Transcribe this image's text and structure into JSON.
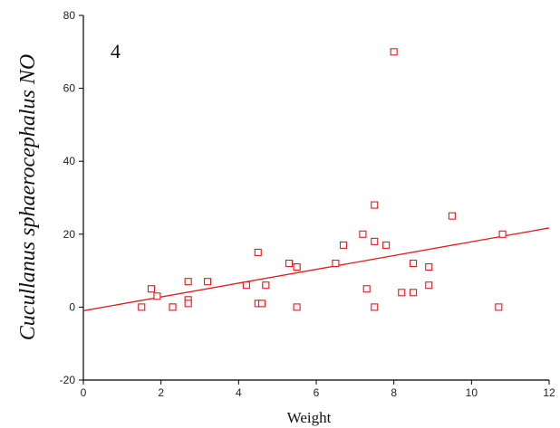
{
  "chart_data": {
    "type": "scatter",
    "panel_label": "4",
    "xlabel": "Weight",
    "ylabel": "Cucullanus sphaerocephalus NO",
    "xlim": [
      0,
      12
    ],
    "ylim": [
      -20,
      80
    ],
    "x_ticks": [
      0,
      2,
      4,
      6,
      8,
      10,
      12
    ],
    "y_ticks": [
      -20,
      0,
      20,
      40,
      60,
      80
    ],
    "grid": false,
    "marker": "open-square",
    "color": "#e31a1c",
    "points": [
      {
        "x": 1.5,
        "y": 0
      },
      {
        "x": 1.75,
        "y": 5
      },
      {
        "x": 1.9,
        "y": 3
      },
      {
        "x": 2.3,
        "y": 0
      },
      {
        "x": 2.3,
        "y": 0
      },
      {
        "x": 2.7,
        "y": 7
      },
      {
        "x": 2.7,
        "y": 2
      },
      {
        "x": 2.7,
        "y": 1
      },
      {
        "x": 3.2,
        "y": 7
      },
      {
        "x": 4.2,
        "y": 6
      },
      {
        "x": 4.5,
        "y": 15
      },
      {
        "x": 4.5,
        "y": 1
      },
      {
        "x": 4.6,
        "y": 1
      },
      {
        "x": 4.7,
        "y": 6
      },
      {
        "x": 5.3,
        "y": 12
      },
      {
        "x": 5.5,
        "y": 11
      },
      {
        "x": 5.5,
        "y": 11
      },
      {
        "x": 5.5,
        "y": 0
      },
      {
        "x": 6.5,
        "y": 12
      },
      {
        "x": 6.7,
        "y": 17
      },
      {
        "x": 7.2,
        "y": 20
      },
      {
        "x": 7.3,
        "y": 5
      },
      {
        "x": 7.5,
        "y": 28
      },
      {
        "x": 7.5,
        "y": 18
      },
      {
        "x": 7.5,
        "y": 0
      },
      {
        "x": 7.8,
        "y": 17
      },
      {
        "x": 8.0,
        "y": 70
      },
      {
        "x": 8.2,
        "y": 4
      },
      {
        "x": 8.5,
        "y": 12
      },
      {
        "x": 8.5,
        "y": 4
      },
      {
        "x": 8.9,
        "y": 11
      },
      {
        "x": 8.9,
        "y": 6
      },
      {
        "x": 9.5,
        "y": 25
      },
      {
        "x": 10.7,
        "y": 0
      },
      {
        "x": 10.8,
        "y": 20
      }
    ],
    "fit_line": {
      "x": [
        0,
        12
      ],
      "y": [
        -1,
        21.7
      ]
    }
  }
}
